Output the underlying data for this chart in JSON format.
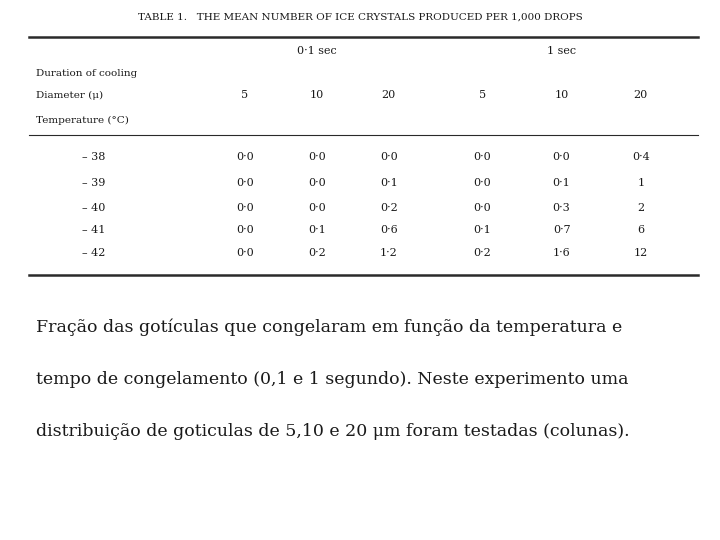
{
  "title": "TABLE 1. The mean number of ice crystals produced per 1,000 drops",
  "table_title": "TABLE 1.   THE MEAN NUMBER OF ICE CRYSTALS PRODUCED PER 1,000 DROPS",
  "header_row1": [
    "",
    "0·1 sec",
    "",
    "",
    "1 sec",
    "",
    ""
  ],
  "header_row2": [
    "Duration of cooling",
    "5",
    "10",
    "20",
    "5",
    "10",
    "20"
  ],
  "header_row3": [
    "Diameter (μ)",
    "",
    "",
    "",
    "",
    "",
    ""
  ],
  "header_row4": [
    "Temperature (°C)",
    "",
    "",
    "",
    "",
    "",
    ""
  ],
  "rows": [
    [
      "– 38",
      "0·0",
      "0·0",
      "0·0",
      "0·0",
      "0·0",
      "0·4"
    ],
    [
      "– 39",
      "0·0",
      "0·0",
      "0·1",
      "0·0",
      "0·1",
      "1"
    ],
    [
      "– 40",
      "0·0",
      "0·0",
      "0·2",
      "0·0",
      "0·3",
      "2"
    ],
    [
      "– 41",
      "0·0",
      "0·1",
      "0·6",
      "0·1",
      "0·7",
      "6"
    ],
    [
      "– 42",
      "0·0",
      "0·2",
      "1·2",
      "0·2",
      "1·6",
      "12"
    ]
  ],
  "caption_line1": "Fração das gotículas que congelaram em função da temperatura e",
  "caption_line2": "tempo de congelamento (0,1 e 1 segundo). Neste experimento uma",
  "caption_line3": "distribuição de goticulas de 5,10 e 20 μm foram testadas (colunas).",
  "bg_color_table": "#f5f0e0",
  "bg_color_caption": "#ffffff",
  "text_color": "#1a1a1a"
}
